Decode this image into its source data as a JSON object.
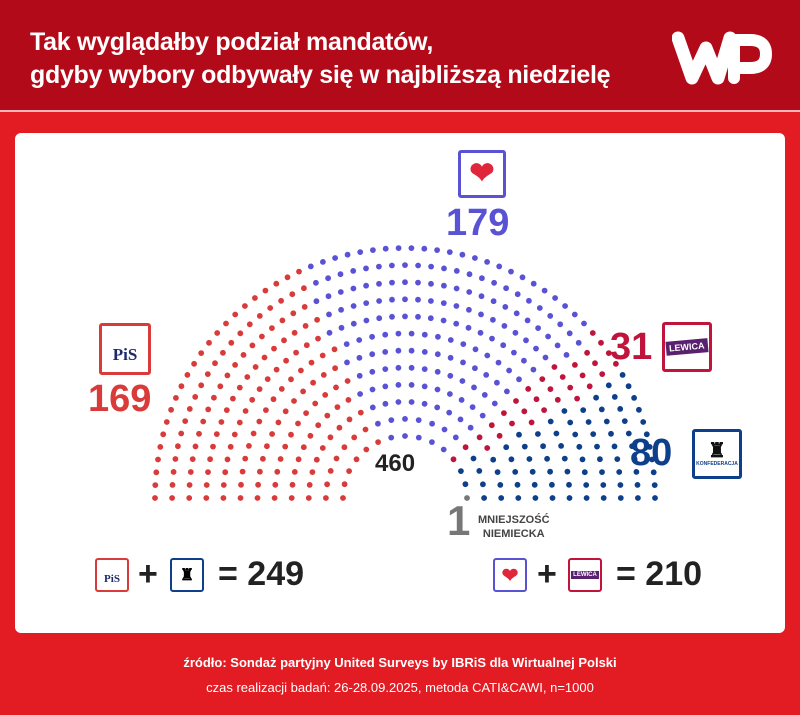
{
  "header": {
    "title_line1": "Tak wyglądałby podział mandatów,",
    "title_line2": "gdyby wybory odbywały się w najbliższą niedzielę",
    "logo": "WP"
  },
  "chart_data": {
    "type": "parliament",
    "total": 460,
    "parties": [
      {
        "name": "PiS",
        "seats": 169,
        "color": "#d93b3b"
      },
      {
        "name": "KO",
        "seats": 179,
        "color": "#5a52d5"
      },
      {
        "name": "LEWICA",
        "seats": 31,
        "color": "#c0143c"
      },
      {
        "name": "KONFEDERACJA",
        "seats": 80,
        "color": "#0d3f8a"
      },
      {
        "name": "MNIEJSZOŚĆ NIEMIECKA",
        "seats": 1,
        "color": "#777777"
      }
    ],
    "labels": {
      "pis": "169",
      "ko": "179",
      "lewica": "31",
      "konf": "80",
      "mn": "1",
      "mn_line1": "MNIEJSZOŚĆ",
      "mn_line2": "NIEMIECKA",
      "total": "460"
    }
  },
  "logos": {
    "pis": "PiS",
    "lewica": "LEWICA",
    "konf": "KONFEDERACJA"
  },
  "coalitions": [
    {
      "plus": "+",
      "eq": "= 249"
    },
    {
      "plus": "+",
      "eq": "= 210"
    }
  ],
  "footer": {
    "source": "źródło: Sondaż partyjny United Surveys by IBRiS dla Wirtualnej Polski",
    "method": "czas realizacji badań: 26-28.09.2025, metoda CATI&CAWI, n=1000"
  }
}
